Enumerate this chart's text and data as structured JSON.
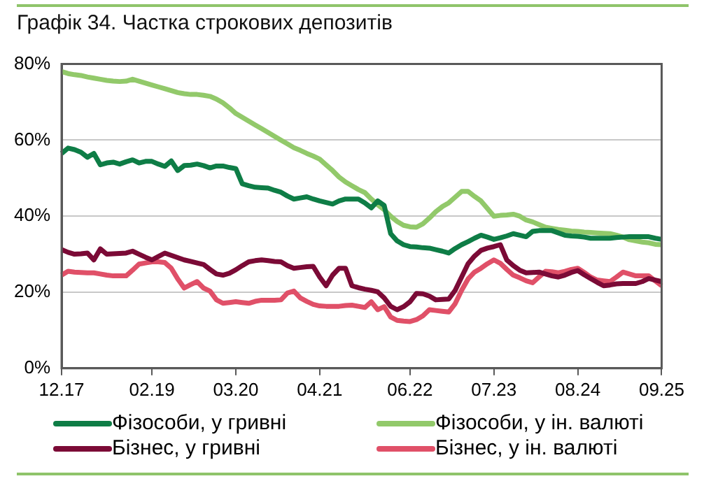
{
  "chart_data": {
    "type": "line",
    "title": "Графік 34. Частка строкових депозитів",
    "categories": [
      "12.17",
      null,
      null,
      null,
      null,
      null,
      null,
      null,
      null,
      null,
      null,
      null,
      null,
      null,
      "02.19",
      null,
      null,
      null,
      null,
      null,
      null,
      null,
      null,
      null,
      null,
      null,
      null,
      "03.20",
      null,
      null,
      null,
      null,
      null,
      null,
      null,
      null,
      null,
      null,
      null,
      null,
      "04.21",
      null,
      null,
      null,
      null,
      null,
      null,
      null,
      null,
      null,
      null,
      null,
      null,
      null,
      "06.22",
      null,
      null,
      null,
      null,
      null,
      null,
      null,
      null,
      null,
      null,
      null,
      null,
      "07.23",
      null,
      null,
      null,
      null,
      null,
      null,
      null,
      null,
      null,
      null,
      null,
      null,
      "08.24",
      null,
      null,
      null,
      null,
      null,
      null,
      null,
      null,
      null,
      null,
      null,
      null,
      "09.25"
    ],
    "series": [
      {
        "name": "Фізособи, у гривні",
        "color": "#0e7d46",
        "values": [
          56.5,
          57.9,
          57.5,
          56.8,
          55.5,
          56.5,
          53.5,
          54,
          54.2,
          53.7,
          54.3,
          54.8,
          54,
          54.4,
          54.4,
          53.7,
          53.1,
          54.5,
          52,
          53.3,
          53.4,
          53.7,
          53.3,
          52.7,
          53.2,
          53.2,
          52.8,
          52.5,
          48.5,
          48,
          47.6,
          47.5,
          47.4,
          46.8,
          46.3,
          45.3,
          44.5,
          44.8,
          45.1,
          44.5,
          44,
          43.6,
          43.2,
          44,
          44.5,
          44.5,
          44.5,
          43.5,
          42.2,
          44,
          42.8,
          35.4,
          33.5,
          32.5,
          32,
          31.9,
          31.7,
          31.6,
          31.2,
          30.8,
          30.3,
          31.5,
          32.5,
          33.3,
          34.2,
          35,
          34.5,
          33.9,
          34.3,
          34.8,
          35.4,
          35,
          34.6,
          36,
          36.2,
          36.2,
          36.2,
          35.6,
          35,
          34.8,
          34.7,
          34.5,
          34.2,
          34.2,
          34.2,
          34.2,
          34.4,
          34.5,
          34.6,
          34.6,
          34.6,
          34.6,
          34.2,
          33.9
        ]
      },
      {
        "name": "Фізособи, у ін. валюті",
        "color": "#92c96a",
        "values": [
          78,
          77.5,
          77.2,
          77,
          76.6,
          76.3,
          76,
          75.7,
          75.5,
          75.4,
          75.5,
          76,
          75.5,
          75,
          74.5,
          74,
          73.5,
          73,
          72.5,
          72.2,
          72,
          72,
          71.8,
          71.5,
          70.8,
          69.8,
          68.5,
          67,
          66,
          65,
          64,
          63,
          62,
          61,
          60,
          59,
          58,
          57.3,
          56.5,
          55.8,
          55,
          53.5,
          52,
          50.3,
          49,
          48,
          47,
          46.2,
          44.5,
          43,
          41.7,
          40,
          38.6,
          37.6,
          37.2,
          37.1,
          38,
          39.5,
          41.2,
          42.5,
          43.5,
          45,
          46.5,
          46.5,
          45.2,
          44,
          42,
          40,
          40.2,
          40.3,
          40.5,
          40,
          39,
          38.5,
          37.8,
          37.1,
          36.8,
          36.5,
          36.3,
          36.1,
          36,
          35.8,
          35.7,
          35.6,
          35.5,
          35.4,
          35,
          34.5,
          33.8,
          33.5,
          33.2,
          33,
          32.6,
          32.5
        ]
      },
      {
        "name": "Бізнес, у гривні",
        "color": "#7b0a36",
        "values": [
          31.2,
          30.5,
          30,
          30.1,
          30.3,
          28.5,
          31.4,
          30,
          30.1,
          30.2,
          30.3,
          30.8,
          30,
          29.2,
          28.5,
          29.4,
          30.3,
          29.7,
          29.1,
          28.5,
          28.1,
          27.7,
          27.3,
          26,
          24.8,
          24.5,
          25,
          25.9,
          27,
          28,
          28.3,
          28.5,
          28.3,
          28.1,
          28,
          27,
          26.3,
          26.5,
          26.7,
          26.8,
          24,
          21.7,
          24.5,
          26.3,
          26.3,
          21.7,
          21.2,
          20.8,
          20.5,
          20.1,
          18.5,
          16.3,
          15.4,
          16.2,
          17.5,
          19.7,
          19.6,
          19,
          18,
          18.1,
          18.2,
          20.5,
          24,
          27.5,
          29.5,
          31,
          31.6,
          32,
          32.5,
          28.5,
          27,
          25.8,
          25.1,
          25.2,
          25.3,
          24.8,
          24.3,
          24,
          24.5,
          25.2,
          25.7,
          24.6,
          23.6,
          22.6,
          21.7,
          21.9,
          22.2,
          22.3,
          22.3,
          22.3,
          22.8,
          23.6,
          23.2,
          22.8
        ]
      },
      {
        "name": "Бізнес, у ін. валюті",
        "color": "#e05068",
        "values": [
          24.5,
          25.5,
          25.3,
          25.2,
          25.1,
          25.1,
          24.8,
          24.5,
          24.3,
          24.3,
          24.3,
          25.8,
          27.4,
          27.7,
          28,
          28,
          27.8,
          26.3,
          23.5,
          21.1,
          22,
          22.8,
          21.1,
          20.3,
          18,
          17.1,
          17.3,
          17.5,
          17.3,
          17.1,
          17.6,
          17.9,
          17.9,
          17.9,
          18,
          19.8,
          20.3,
          18.5,
          17.6,
          16.8,
          16.4,
          16.3,
          16.3,
          16.3,
          16.5,
          16.6,
          16.3,
          16,
          17.5,
          15.4,
          16.2,
          13.5,
          12.6,
          12.4,
          12.3,
          12.8,
          13.8,
          15.4,
          15.2,
          15,
          14.8,
          17,
          20.5,
          23.5,
          25.3,
          26.3,
          27.5,
          28.5,
          27.6,
          26,
          24.5,
          23.8,
          23,
          22.5,
          24,
          25.5,
          25.4,
          25.1,
          25.5,
          26,
          26.3,
          25.2,
          24,
          23.2,
          23,
          22.8,
          24,
          25.3,
          24.8,
          24.3,
          24.3,
          24.3,
          23,
          21.7
        ]
      }
    ],
    "ylim": [
      0,
      80
    ],
    "yticks": [
      {
        "value": 0,
        "label": "0%"
      },
      {
        "value": 20,
        "label": "20%"
      },
      {
        "value": 40,
        "label": "40%"
      },
      {
        "value": 60,
        "label": "60%"
      },
      {
        "value": 80,
        "label": "80%"
      }
    ],
    "grid": "y",
    "legend": "bottom",
    "marker": "none",
    "line_style": "solid"
  }
}
